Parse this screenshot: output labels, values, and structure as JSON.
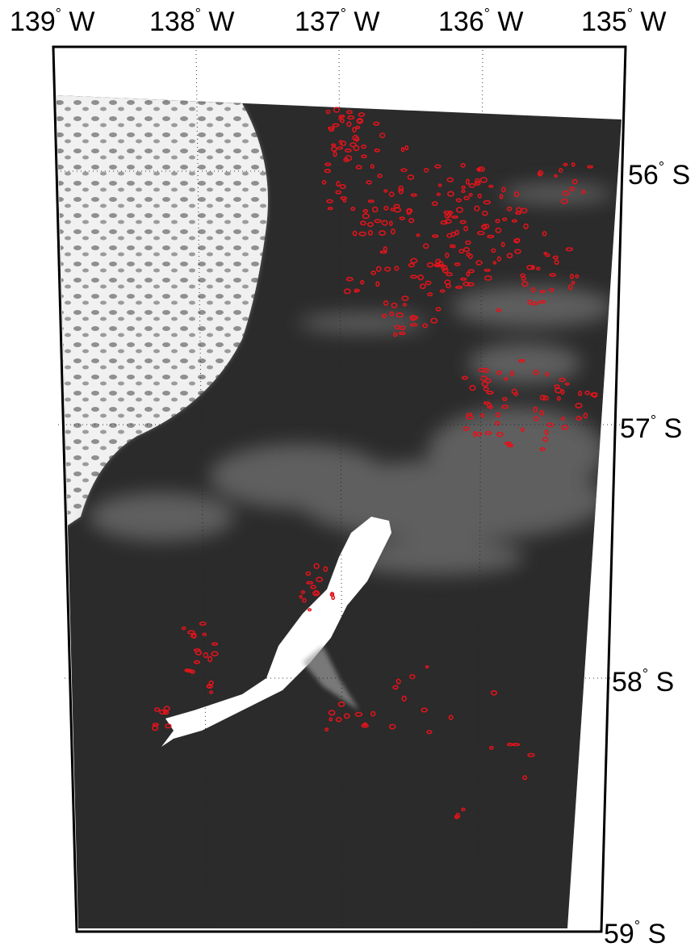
{
  "map": {
    "lon_labels": [
      {
        "deg": "139",
        "hemi": "W"
      },
      {
        "deg": "138",
        "hemi": "W"
      },
      {
        "deg": "137",
        "hemi": "W"
      },
      {
        "deg": "136",
        "hemi": "W"
      },
      {
        "deg": "135",
        "hemi": "W"
      }
    ],
    "lat_labels": [
      {
        "deg": "56",
        "hemi": "S"
      },
      {
        "deg": "57",
        "hemi": "S"
      },
      {
        "deg": "58",
        "hemi": "S"
      },
      {
        "deg": "59",
        "hemi": "S"
      }
    ],
    "degree_symbol": "°",
    "colors": {
      "ocean": "#2b2b2b",
      "cloud": "#e8e8e8",
      "iceberg": "#ffffff",
      "detections": "#e0141c",
      "frame": "#000000",
      "background": "#ffffff"
    }
  }
}
